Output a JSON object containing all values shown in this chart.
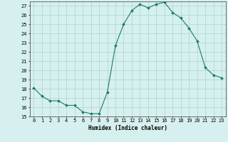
{
  "xlabel": "Humidex (Indice chaleur)",
  "x": [
    0,
    1,
    2,
    3,
    4,
    5,
    6,
    7,
    8,
    9,
    10,
    11,
    12,
    13,
    14,
    15,
    16,
    17,
    18,
    19,
    20,
    21,
    22,
    23
  ],
  "y": [
    18.1,
    17.2,
    16.7,
    16.7,
    16.2,
    16.2,
    15.5,
    15.3,
    15.3,
    17.6,
    22.7,
    25.0,
    26.5,
    27.2,
    26.8,
    27.2,
    27.4,
    26.3,
    25.7,
    24.6,
    23.2,
    20.3,
    19.5,
    19.2
  ],
  "line_color": "#1a7a6e",
  "marker": "D",
  "marker_size": 2.0,
  "bg_color": "#d6f0ef",
  "grid_color": "#b0d8d4",
  "ylim": [
    15,
    27.5
  ],
  "yticks": [
    15,
    16,
    17,
    18,
    19,
    20,
    21,
    22,
    23,
    24,
    25,
    26,
    27
  ],
  "xlim": [
    -0.5,
    23.5
  ],
  "label_fontsize": 5.5,
  "tick_fontsize": 5.0
}
